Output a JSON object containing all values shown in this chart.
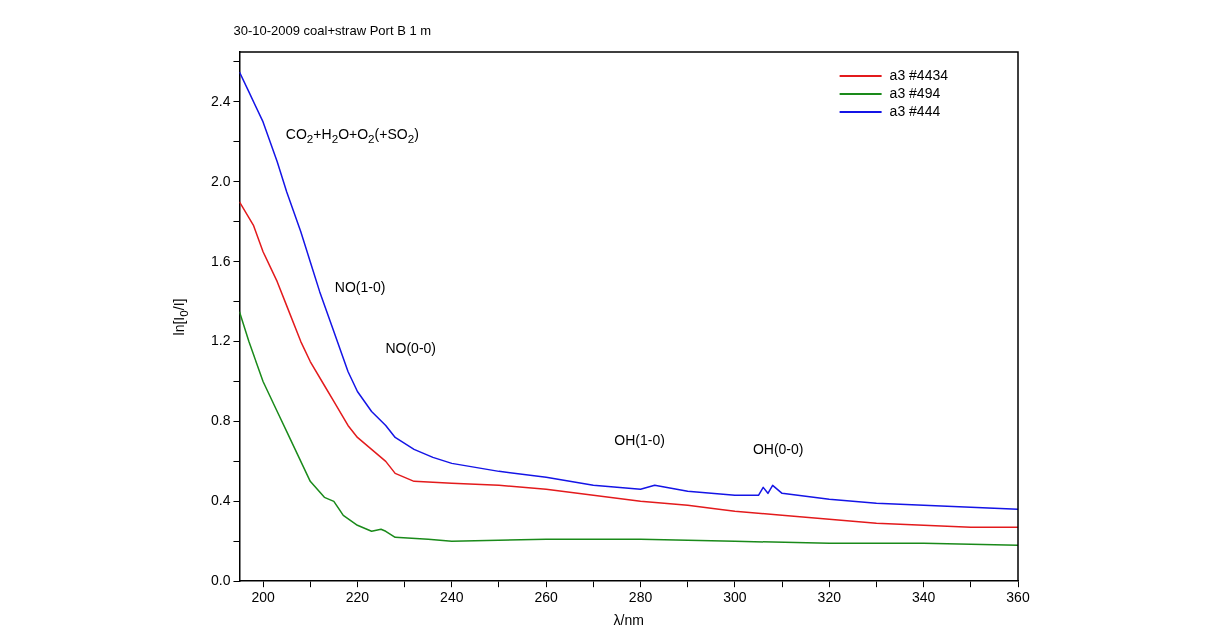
{
  "chart_data": {
    "type": "line",
    "title": "30-10-2009 coal+straw Port B 1 m",
    "xlabel": "λ/nm",
    "ylabel": "ln[I$_{0}$/I]",
    "xlim": [
      195,
      360
    ],
    "xticks": [
      200,
      {
        "value": 210,
        "label": null
      },
      220,
      {
        "value": 230,
        "label": null
      },
      240,
      {
        "value": 250,
        "label": null
      },
      260,
      {
        "value": 270,
        "label": null
      },
      280,
      {
        "value": 290,
        "label": null
      },
      300,
      {
        "value": 310,
        "label": null
      },
      320,
      {
        "value": 330,
        "label": null
      },
      340,
      {
        "value": 350,
        "label": null
      },
      360
    ],
    "ylim": [
      0,
      2.65
    ],
    "yticks": [
      {
        "value": 0,
        "label": "0.0"
      },
      {
        "value": 0.2,
        "label": null
      },
      0.4,
      {
        "value": 0.6,
        "label": null
      },
      0.8,
      {
        "value": 1.0,
        "label": null
      },
      1.2,
      {
        "value": 1.4,
        "label": null
      },
      1.6,
      {
        "value": 1.8,
        "label": null
      },
      {
        "value": 2.0,
        "label": "2.0"
      },
      {
        "value": 2.2,
        "label": null
      },
      2.4,
      {
        "value": 2.6,
        "label": null
      }
    ],
    "grid": false,
    "legend": "top right",
    "marker": "none",
    "line_style": "solid",
    "series": [
      {
        "name": "a3 #4434",
        "color": "#e31a1c",
        "x": [
          195,
          198,
          200,
          203,
          205,
          208,
          210,
          213,
          215,
          218,
          220,
          223,
          226,
          228,
          232,
          240,
          250,
          260,
          270,
          280,
          290,
          300,
          310,
          320,
          330,
          340,
          350,
          360
        ],
        "values": [
          1.9,
          1.78,
          1.65,
          1.5,
          1.38,
          1.2,
          1.1,
          0.98,
          0.9,
          0.78,
          0.72,
          0.66,
          0.6,
          0.54,
          0.5,
          0.49,
          0.48,
          0.46,
          0.43,
          0.4,
          0.38,
          0.35,
          0.33,
          0.31,
          0.29,
          0.28,
          0.27,
          0.27
        ]
      },
      {
        "name": "a3 #494",
        "color": "#1a8a1a",
        "x": [
          195,
          197,
          200,
          203,
          205,
          208,
          210,
          213,
          215,
          217,
          220,
          223,
          225,
          226,
          228,
          235,
          240,
          260,
          280,
          300,
          320,
          340,
          360
        ],
        "values": [
          1.35,
          1.2,
          1.0,
          0.85,
          0.75,
          0.6,
          0.5,
          0.42,
          0.4,
          0.33,
          0.28,
          0.25,
          0.26,
          0.25,
          0.22,
          0.21,
          0.2,
          0.21,
          0.21,
          0.2,
          0.19,
          0.19,
          0.18
        ]
      },
      {
        "name": "a3 #444",
        "color": "#1414e6",
        "x": [
          195,
          197,
          200,
          203,
          205,
          208,
          210,
          212,
          215,
          218,
          220,
          223,
          226,
          228,
          232,
          236,
          240,
          250,
          260,
          270,
          280,
          283,
          290,
          300,
          305,
          306,
          307,
          308,
          310,
          320,
          330,
          340,
          350,
          360
        ],
        "values": [
          2.55,
          2.45,
          2.3,
          2.1,
          1.95,
          1.75,
          1.6,
          1.45,
          1.25,
          1.05,
          0.95,
          0.85,
          0.78,
          0.72,
          0.66,
          0.62,
          0.59,
          0.55,
          0.52,
          0.48,
          0.46,
          0.48,
          0.45,
          0.43,
          0.43,
          0.47,
          0.44,
          0.48,
          0.44,
          0.41,
          0.39,
          0.38,
          0.37,
          0.36
        ]
      }
    ],
    "annotations": [
      "CO$_{2}$+H$_{2}$O+O$_{2}$(+SO$_{2}$)",
      "NO(1-0)",
      "NO(0-0)",
      "OH(1-0)",
      "OH(0-0)"
    ]
  }
}
